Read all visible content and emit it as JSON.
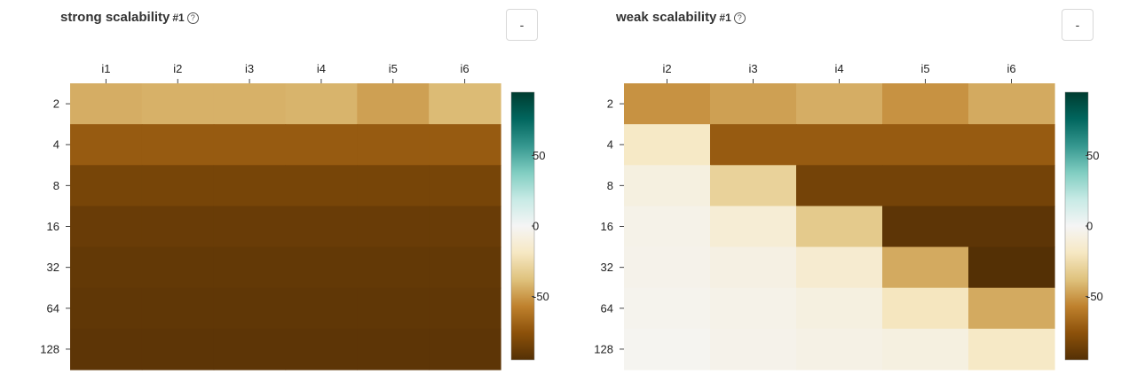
{
  "panels": [
    {
      "title": "strong scalability",
      "suffix": "#1",
      "help_icon": "question-circle-icon",
      "menu_label": "-",
      "menu_icon": "dropdown-icon"
    },
    {
      "title": "weak scalability",
      "suffix": "#1",
      "help_icon": "question-circle-icon",
      "menu_label": "-",
      "menu_icon": "dropdown-icon"
    }
  ],
  "colorscale": {
    "stops": [
      "#543005",
      "#8c510a",
      "#bf812d",
      "#dfc27d",
      "#f6e8c3",
      "#f5f5f5",
      "#c7eae5",
      "#80cdc1",
      "#35978f",
      "#01665e",
      "#003c30"
    ],
    "range": [
      -95,
      95
    ],
    "ticks": [
      50,
      0,
      -50
    ]
  },
  "chart_data": [
    {
      "type": "heatmap",
      "title": "strong scalability",
      "x": [
        "i1",
        "i2",
        "i3",
        "i4",
        "i5",
        "i6"
      ],
      "y": [
        "2",
        "4",
        "8",
        "16",
        "32",
        "64",
        "128"
      ],
      "z": [
        [
          -44,
          -43,
          -43,
          -42,
          -48,
          -40
        ],
        [
          -72,
          -72,
          -72,
          -72,
          -72,
          -72
        ],
        [
          -83,
          -83,
          -83,
          -83,
          -83,
          -83
        ],
        [
          -88,
          -88,
          -88,
          -88,
          -88,
          -88
        ],
        [
          -90,
          -90,
          -90,
          -90,
          -90,
          -90
        ],
        [
          -91,
          -91,
          -91,
          -91,
          -91,
          -91
        ],
        [
          -92,
          -92,
          -92,
          -92,
          -92,
          -92
        ]
      ],
      "colorbar_ticks": [
        50,
        0,
        -50
      ]
    },
    {
      "type": "heatmap",
      "title": "weak scalability",
      "x": [
        "i2",
        "i3",
        "i4",
        "i5",
        "i6"
      ],
      "y": [
        "2",
        "4",
        "8",
        "16",
        "32",
        "64",
        "128"
      ],
      "z": [
        [
          -52,
          -48,
          -44,
          -52,
          -45
        ],
        [
          -18,
          -72,
          -72,
          -72,
          -72
        ],
        [
          -8,
          -30,
          -84,
          -84,
          -84
        ],
        [
          -5,
          -12,
          -34,
          -92,
          -92
        ],
        [
          -4,
          -7,
          -14,
          -45,
          -95
        ],
        [
          -3,
          -5,
          -8,
          -20,
          -45
        ],
        [
          -2,
          -4,
          -6,
          -8,
          -18
        ]
      ],
      "colorbar_ticks": [
        50,
        0,
        -50
      ]
    }
  ]
}
